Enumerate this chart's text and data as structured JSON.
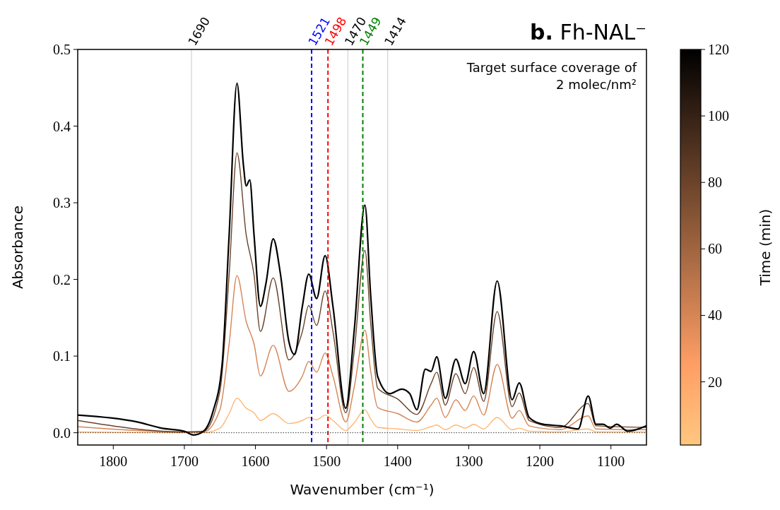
{
  "chart_data": {
    "type": "line",
    "title": "b. Fh-NAL⁻",
    "xlabel": "Wavenumber (cm⁻¹)",
    "ylabel": "Absorbance",
    "clabel": "Time (min)",
    "annotations": [
      "Target surface coverage of\n2 molec/nm²"
    ],
    "xlim": [
      1850,
      1050
    ],
    "xticks": [
      1800,
      1700,
      1600,
      1500,
      1400,
      1300,
      1200,
      1100
    ],
    "ylim": [
      -0.016,
      0.5
    ],
    "yticks": [
      {
        "value": 0,
        "label": "0.0"
      },
      {
        "value": 0.1,
        "label": "0.1"
      },
      {
        "value": 0.2,
        "label": "0.2"
      },
      {
        "value": 0.3,
        "label": "0.3"
      },
      {
        "value": 0.4,
        "label": "0.4"
      },
      {
        "value": 0.5,
        "label": "0.5"
      }
    ],
    "clim": [
      1,
      120
    ],
    "cticks": [
      20,
      40,
      60,
      80,
      100,
      120
    ],
    "grid": false,
    "marker": "none",
    "line_style": "solid",
    "x": [
      1850,
      1700,
      1673,
      1650,
      1637,
      1626,
      1613,
      1602,
      1593,
      1575,
      1553,
      1534,
      1525,
      1514,
      1502,
      1491,
      1473,
      1461,
      1446,
      1438,
      1428,
      1400,
      1373,
      1353,
      1345,
      1333,
      1318,
      1305,
      1293,
      1279,
      1260,
      1239,
      1229,
      1215,
      1171,
      1132,
      1121,
      1050
    ],
    "series": [
      {
        "color": "#ffb774",
        "values": [
          0.001,
          0,
          0,
          0.006,
          0.025,
          0.045,
          0.032,
          0.026,
          0.016,
          0.025,
          0.012,
          0.016,
          0.02,
          0.017,
          0.023,
          0.016,
          0.003,
          0.013,
          0.03,
          0.018,
          0.007,
          0.005,
          0.003,
          0.008,
          0.01,
          0.004,
          0.01,
          0.006,
          0.011,
          0.005,
          0.02,
          0.004,
          0.006,
          0.002,
          0.001,
          0.005,
          0.001,
          0.001
        ]
      },
      {
        "color": "#d48555",
        "values": [
          0.008,
          0.001,
          0.001,
          0.03,
          0.116,
          0.205,
          0.145,
          0.116,
          0.074,
          0.114,
          0.054,
          0.074,
          0.093,
          0.079,
          0.104,
          0.074,
          0.014,
          0.06,
          0.134,
          0.081,
          0.033,
          0.025,
          0.014,
          0.036,
          0.045,
          0.02,
          0.043,
          0.029,
          0.048,
          0.023,
          0.089,
          0.019,
          0.029,
          0.009,
          0.004,
          0.022,
          0.005,
          0.004
        ]
      },
      {
        "color": "#6a422a",
        "values": [
          0.016,
          0.001,
          0.002,
          0.054,
          0.206,
          0.365,
          0.258,
          0.206,
          0.132,
          0.202,
          0.095,
          0.132,
          0.166,
          0.14,
          0.185,
          0.132,
          0.026,
          0.107,
          0.238,
          0.144,
          0.058,
          0.044,
          0.024,
          0.064,
          0.079,
          0.036,
          0.077,
          0.051,
          0.085,
          0.041,
          0.158,
          0.034,
          0.052,
          0.016,
          0.007,
          0.038,
          0.009,
          0.007
        ]
      },
      {
        "color": "#000000",
        "x": [
          1850,
          1766,
          1732,
          1700,
          1687,
          1673,
          1660,
          1647,
          1637,
          1626,
          1617,
          1613,
          1608,
          1602,
          1593,
          1585,
          1575,
          1565,
          1553,
          1545,
          1534,
          1525,
          1514,
          1502,
          1491,
          1473,
          1461,
          1446,
          1438,
          1428,
          1411,
          1394,
          1383,
          1373,
          1361,
          1353,
          1345,
          1333,
          1318,
          1305,
          1293,
          1279,
          1260,
          1239,
          1229,
          1215,
          1195,
          1171,
          1146,
          1132,
          1121,
          1111,
          1101,
          1092,
          1076,
          1050
        ],
        "values": [
          0.023,
          0.014,
          0.006,
          0.002,
          -0.003,
          0.002,
          0.027,
          0.088,
          0.258,
          0.456,
          0.35,
          0.322,
          0.33,
          0.258,
          0.165,
          0.196,
          0.253,
          0.208,
          0.119,
          0.102,
          0.165,
          0.207,
          0.175,
          0.231,
          0.165,
          0.032,
          0.134,
          0.297,
          0.18,
          0.073,
          0.051,
          0.057,
          0.051,
          0.03,
          0.083,
          0.08,
          0.099,
          0.045,
          0.096,
          0.064,
          0.106,
          0.051,
          0.198,
          0.043,
          0.065,
          0.02,
          0.011,
          0.009,
          0.005,
          0.048,
          0.011,
          0.011,
          0.006,
          0.011,
          0.002,
          0.009
        ]
      }
    ],
    "ref_lines": [
      {
        "axis": "x",
        "value": 1690,
        "label": "1690",
        "color": "#c8c8c8",
        "line_style": "solid"
      },
      {
        "axis": "x",
        "value": 1521,
        "label": "1521",
        "color": "#0000ff",
        "line_style": "dashed"
      },
      {
        "axis": "x",
        "value": 1498,
        "label": "1498",
        "color": "#ff0000",
        "line_style": "dashed"
      },
      {
        "axis": "x",
        "value": 1470,
        "label": "1470",
        "color": "#c8c8c8",
        "line_style": "solid"
      },
      {
        "axis": "x",
        "value": 1449,
        "label": "1449",
        "color": "#008000",
        "line_style": "dashed"
      },
      {
        "axis": "x",
        "value": 1414,
        "label": "1414",
        "color": "#c8c8c8",
        "line_style": "solid"
      },
      {
        "axis": "y",
        "value": 0,
        "color": "#000000",
        "line_style": "dotted"
      }
    ]
  }
}
